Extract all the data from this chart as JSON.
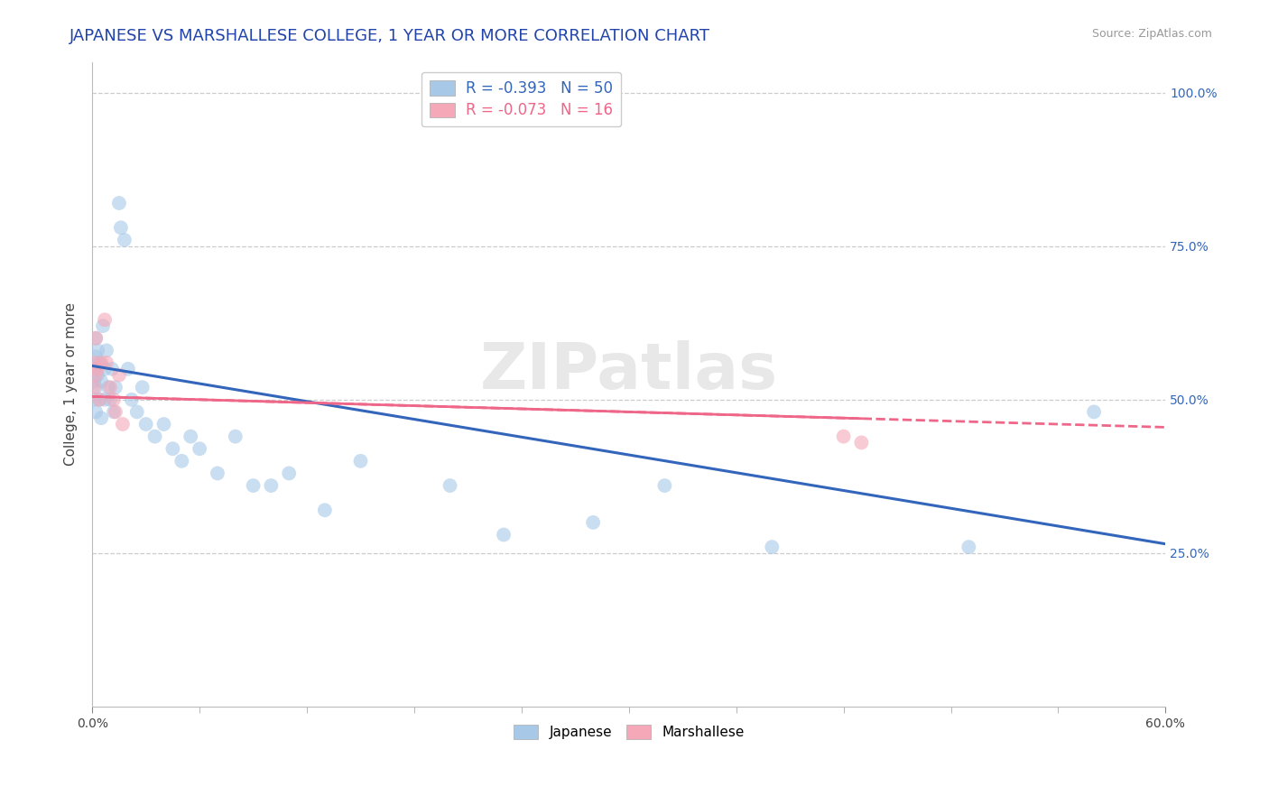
{
  "title": "JAPANESE VS MARSHALLESE COLLEGE, 1 YEAR OR MORE CORRELATION CHART",
  "source_text": "Source: ZipAtlas.com",
  "ylabel": "College, 1 year or more",
  "xlim": [
    0.0,
    0.6
  ],
  "ylim": [
    0.0,
    1.05
  ],
  "ytick_labels_right": [
    "25.0%",
    "50.0%",
    "75.0%",
    "100.0%"
  ],
  "ytick_positions_right": [
    0.25,
    0.5,
    0.75,
    1.0
  ],
  "japanese_color": "#a8c8e8",
  "marshallese_color": "#f4a8b8",
  "japanese_line_color": "#3366bb",
  "marshallese_line_color": "#ee6688",
  "watermark_text": "ZIPatlas",
  "background_color": "#ffffff",
  "grid_color": "#cccccc",
  "japanese_x": [
    0.001,
    0.001,
    0.001,
    0.002,
    0.002,
    0.002,
    0.002,
    0.003,
    0.003,
    0.004,
    0.004,
    0.005,
    0.005,
    0.006,
    0.007,
    0.007,
    0.008,
    0.009,
    0.01,
    0.011,
    0.012,
    0.013,
    0.015,
    0.016,
    0.018,
    0.02,
    0.022,
    0.025,
    0.028,
    0.03,
    0.035,
    0.04,
    0.045,
    0.05,
    0.055,
    0.06,
    0.07,
    0.08,
    0.09,
    0.1,
    0.11,
    0.13,
    0.15,
    0.2,
    0.23,
    0.28,
    0.32,
    0.38,
    0.49,
    0.56
  ],
  "japanese_y": [
    0.55,
    0.53,
    0.5,
    0.6,
    0.57,
    0.52,
    0.48,
    0.58,
    0.54,
    0.56,
    0.5,
    0.53,
    0.47,
    0.62,
    0.55,
    0.5,
    0.58,
    0.52,
    0.5,
    0.55,
    0.48,
    0.52,
    0.82,
    0.78,
    0.76,
    0.55,
    0.5,
    0.48,
    0.52,
    0.46,
    0.44,
    0.46,
    0.42,
    0.4,
    0.44,
    0.42,
    0.38,
    0.44,
    0.36,
    0.36,
    0.38,
    0.32,
    0.4,
    0.36,
    0.28,
    0.3,
    0.36,
    0.26,
    0.26,
    0.48
  ],
  "marshallese_x": [
    0.001,
    0.001,
    0.002,
    0.002,
    0.003,
    0.004,
    0.005,
    0.007,
    0.008,
    0.01,
    0.012,
    0.013,
    0.015,
    0.017,
    0.42,
    0.43
  ],
  "marshallese_y": [
    0.56,
    0.52,
    0.6,
    0.54,
    0.55,
    0.5,
    0.56,
    0.63,
    0.56,
    0.52,
    0.5,
    0.48,
    0.54,
    0.46,
    0.44,
    0.43
  ],
  "title_fontsize": 13,
  "axis_label_fontsize": 11,
  "tick_fontsize": 10,
  "legend_fontsize": 11,
  "marker_size": 130
}
